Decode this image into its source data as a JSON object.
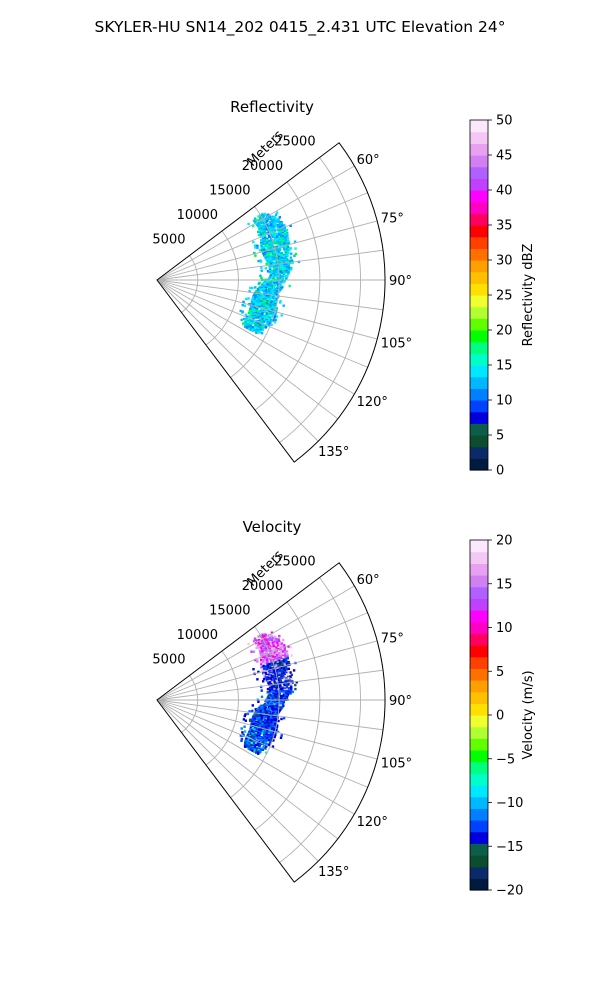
{
  "suptitle": "SKYLER-HU  SN14_202  0415_2.431 UTC Elevation 24°",
  "chart_data": [
    {
      "type": "heatmap",
      "title": "Reflectivity",
      "radial_label": "Meters",
      "range_ticks": [
        "5000",
        "10000",
        "15000",
        "20000",
        "25000"
      ],
      "range_tick_values": [
        5000,
        10000,
        15000,
        20000,
        25000
      ],
      "rlim": [
        0,
        28000
      ],
      "azimuth_ticks": [
        "60°",
        "75°",
        "90°",
        "105°",
        "120°",
        "135°"
      ],
      "azimuth_tick_values": [
        60,
        75,
        90,
        105,
        120,
        135
      ],
      "azimuth_span": [
        53,
        143
      ],
      "grid": true,
      "colorbar": {
        "label": "Reflectivity dBZ",
        "ticks": [
          "0",
          "5",
          "10",
          "15",
          "20",
          "25",
          "30",
          "35",
          "40",
          "45",
          "50"
        ],
        "range": [
          0,
          50
        ]
      },
      "echo": {
        "azimuth_extent_deg": [
          58,
          118
        ],
        "range_extent_m": [
          12500,
          17500
        ],
        "dominant_values": [
          12,
          18
        ],
        "variant": "reflectivity"
      }
    },
    {
      "type": "heatmap",
      "title": "Velocity",
      "radial_label": "Meters",
      "range_ticks": [
        "5000",
        "10000",
        "15000",
        "20000",
        "25000"
      ],
      "range_tick_values": [
        5000,
        10000,
        15000,
        20000,
        25000
      ],
      "rlim": [
        0,
        28000
      ],
      "azimuth_ticks": [
        "60°",
        "75°",
        "90°",
        "105°",
        "120°",
        "135°"
      ],
      "azimuth_tick_values": [
        60,
        75,
        90,
        105,
        120,
        135
      ],
      "azimuth_span": [
        53,
        143
      ],
      "grid": true,
      "colorbar": {
        "label": "Velocity (m/s)",
        "ticks": [
          "20",
          "15",
          "10",
          "5",
          "0",
          "−5",
          "−10",
          "−15",
          "−20"
        ],
        "range": [
          -20,
          20
        ]
      },
      "echo": {
        "azimuth_extent_deg": [
          58,
          118
        ],
        "range_extent_m": [
          12500,
          17500
        ],
        "dominant_values": [
          -13,
          15
        ],
        "variant": "velocity"
      }
    }
  ],
  "colorscale": {
    "stops": [
      "#001a40",
      "#0a2a6a",
      "#0b4d2c",
      "#0b5f4a",
      "#0000dc",
      "#0040ff",
      "#0080ff",
      "#00b8ff",
      "#00e8ff",
      "#00ffc8",
      "#00ff80",
      "#00ff00",
      "#60ff00",
      "#b0ff30",
      "#f0ff30",
      "#ffe000",
      "#ffc000",
      "#ffa000",
      "#ff7000",
      "#ff4000",
      "#ff0000",
      "#ff0060",
      "#ff00c0",
      "#ff00ff",
      "#c040ff",
      "#b060ff",
      "#d080f0",
      "#e8a0f0",
      "#f4c8f4",
      "#fce8fc"
    ]
  }
}
